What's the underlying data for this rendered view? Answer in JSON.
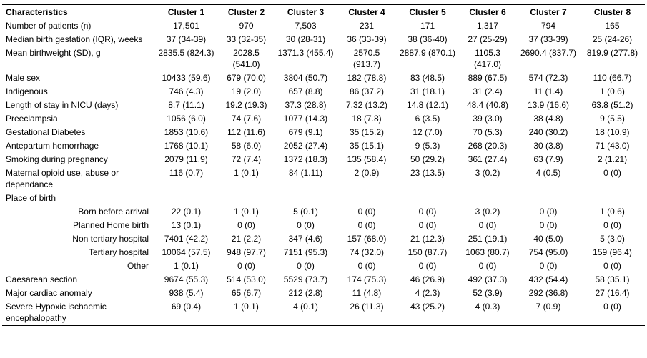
{
  "headers": [
    "Characteristics",
    "Cluster 1",
    "Cluster 2",
    "Cluster 3",
    "Cluster 4",
    "Cluster 5",
    "Cluster 6",
    "Cluster 7",
    "Cluster 8"
  ],
  "rows": [
    {
      "label": "Number of patients (n)",
      "indent": false,
      "values": [
        "17,501",
        "970",
        "7,503",
        "231",
        "171",
        "1,317",
        "794",
        "165"
      ]
    },
    {
      "label": "Median birth gestation (IQR), weeks",
      "indent": false,
      "values": [
        "37 (34-39)",
        "33 (32-35)",
        "30 (28-31)",
        "36 (33-39)",
        "38 (36-40)",
        "27 (25-29)",
        "37 (33-39)",
        "25 (24-26)"
      ]
    },
    {
      "label": "Mean birthweight (SD), g",
      "indent": false,
      "values": [
        "2835.5 (824.3)",
        "2028.5 (541.0)",
        "1371.3 (455.4)",
        "2570.5 (913.7)",
        "2887.9 (870.1)",
        "1105.3 (417.0)",
        "2690.4 (837.7)",
        "819.9 (277.8)"
      ]
    },
    {
      "label": "Male sex",
      "indent": false,
      "values": [
        "10433 (59.6)",
        "679 (70.0)",
        "3804 (50.7)",
        "182 (78.8)",
        "83 (48.5)",
        "889 (67.5)",
        "574 (72.3)",
        "110 (66.7)"
      ]
    },
    {
      "label": "Indigenous",
      "indent": false,
      "values": [
        "746 (4.3)",
        "19 (2.0)",
        "657 (8.8)",
        "86 (37.2)",
        "31 (18.1)",
        "31 (2.4)",
        "11 (1.4)",
        "1 (0.6)"
      ]
    },
    {
      "label": "Length of stay in NICU (days)",
      "indent": false,
      "values": [
        "8.7 (11.1)",
        "19.2 (19.3)",
        "37.3 (28.8)",
        "7.32 (13.2)",
        "14.8 (12.1)",
        "48.4 (40.8)",
        "13.9 (16.6)",
        "63.8 (51.2)"
      ]
    },
    {
      "label": "Preeclampsia",
      "indent": false,
      "values": [
        "1056 (6.0)",
        "74 (7.6)",
        "1077 (14.3)",
        "18 (7.8)",
        "6 (3.5)",
        "39 (3.0)",
        "38 (4.8)",
        "9 (5.5)"
      ]
    },
    {
      "label": "Gestational Diabetes",
      "indent": false,
      "values": [
        "1853 (10.6)",
        "112 (11.6)",
        "679 (9.1)",
        "35 (15.2)",
        "12 (7.0)",
        "70 (5.3)",
        "240 (30.2)",
        "18 (10.9)"
      ]
    },
    {
      "label": "Antepartum hemorrhage",
      "indent": false,
      "values": [
        "1768 (10.1)",
        "58 (6.0)",
        "2052 (27.4)",
        "35 (15.1)",
        "9 (5.3)",
        "268 (20.3)",
        "30 (3.8)",
        "71 (43.0)"
      ]
    },
    {
      "label": "Smoking during pregnancy",
      "indent": false,
      "values": [
        "2079 (11.9)",
        "72 (7.4)",
        "1372 (18.3)",
        "135 (58.4)",
        "50 (29.2)",
        "361 (27.4)",
        "63 (7.9)",
        "2 (1.21)"
      ]
    },
    {
      "label": "Maternal opioid use, abuse or dependance",
      "indent": false,
      "values": [
        "116 (0.7)",
        "1 (0.1)",
        "84 (1.11)",
        "2 (0.9)",
        "23 (13.5)",
        "3 (0.2)",
        "4 (0.5)",
        "0 (0)"
      ]
    },
    {
      "label": "Place of birth",
      "indent": false,
      "values": [
        "",
        "",
        "",
        "",
        "",
        "",
        "",
        ""
      ]
    },
    {
      "label": "Born before arrival",
      "indent": true,
      "values": [
        "22 (0.1)",
        "1 (0.1)",
        "5 (0.1)",
        "0 (0)",
        "0 (0)",
        "3 (0.2)",
        "0 (0)",
        "1 (0.6)"
      ]
    },
    {
      "label": "Planned Home birth",
      "indent": true,
      "values": [
        "13 (0.1)",
        "0 (0)",
        "0 (0)",
        "0 (0)",
        "0 (0)",
        "0 (0)",
        "0 (0)",
        "0 (0)"
      ]
    },
    {
      "label": "Non tertiary hospital",
      "indent": true,
      "values": [
        "7401 (42.2)",
        "21 (2.2)",
        "347 (4.6)",
        "157 (68.0)",
        "21 (12.3)",
        "251 (19.1)",
        "40 (5.0)",
        "5 (3.0)"
      ]
    },
    {
      "label": "Tertiary hospital",
      "indent": true,
      "values": [
        "10064 (57.5)",
        "948 (97.7)",
        "7151 (95.3)",
        "74 (32.0)",
        "150 (87.7)",
        "1063 (80.7)",
        "754 (95.0)",
        "159 (96.4)"
      ]
    },
    {
      "label": "Other",
      "indent": true,
      "values": [
        "1 (0.1)",
        "0 (0)",
        "0 (0)",
        "0 (0)",
        "0 (0)",
        "0 (0)",
        "0 (0)",
        "0 (0)"
      ]
    },
    {
      "label": "Caesarean section",
      "indent": false,
      "values": [
        "9674 (55.3)",
        "514 (53.0)",
        "5529 (73.7)",
        "174 (75.3)",
        "46 (26.9)",
        "492 (37.3)",
        "432 (54.4)",
        "58 (35.1)"
      ]
    },
    {
      "label": "Major cardiac anomaly",
      "indent": false,
      "values": [
        "938 (5.4)",
        "65 (6.7)",
        "212 (2.8)",
        "11 (4.8)",
        "4 (2.3)",
        "52 (3.9)",
        "292 (36.8)",
        "27 (16.4)"
      ]
    },
    {
      "label": "Severe Hypoxic ischaemic encephalopathy",
      "indent": false,
      "values": [
        "69 (0.4)",
        "1 (0.1)",
        "4 (0.1)",
        "26 (11.3)",
        "43 (25.2)",
        "4 (0.3)",
        "7 (0.9)",
        "0 (0)"
      ]
    }
  ]
}
